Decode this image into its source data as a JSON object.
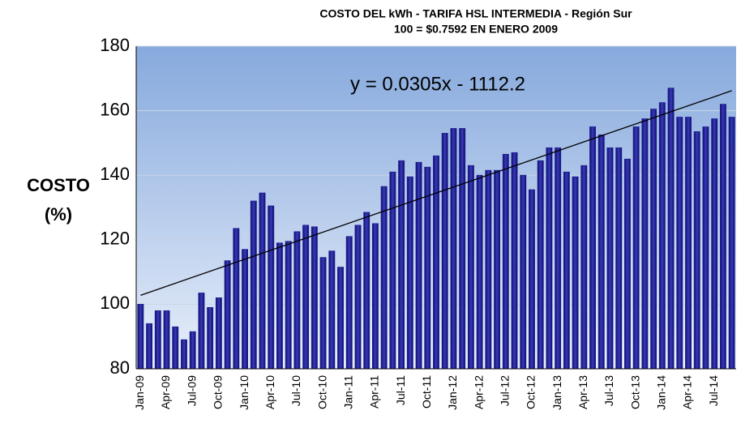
{
  "chart_data": {
    "type": "bar",
    "title": "COSTO DEL kWh - TARIFA HSL INTERMEDIA - Región Sur",
    "subtitle": "100 = $0.7592 EN ENERO 2009",
    "y_label": [
      "COSTO",
      "(%)"
    ],
    "annotation": "y = 0.0305x - 1112.2",
    "categories": [
      "Jan-09",
      null,
      null,
      "Apr-09",
      null,
      null,
      "Jul-09",
      null,
      null,
      "Oct-09",
      null,
      null,
      "Jan-10",
      null,
      null,
      "Apr-10",
      null,
      null,
      "Jul-10",
      null,
      null,
      "Oct-10",
      null,
      null,
      "Jan-11",
      null,
      null,
      "Apr-11",
      null,
      null,
      "Jul-11",
      null,
      null,
      "Oct-11",
      null,
      null,
      "Jan-12",
      null,
      null,
      "Apr-12",
      null,
      null,
      "Jul-12",
      null,
      null,
      "Oct-12",
      null,
      null,
      "Jan-13",
      null,
      null,
      "Apr-13",
      null,
      null,
      "Jul-13",
      null,
      null,
      "Oct-13",
      null,
      null,
      "Jan-14",
      null,
      null,
      "Apr-14",
      null,
      null,
      "Jul-14",
      null,
      null
    ],
    "values": [
      100,
      94,
      98,
      98,
      93,
      89,
      91.5,
      103.5,
      99,
      102,
      113.5,
      123.5,
      117,
      132,
      134.5,
      130.5,
      119,
      119.5,
      122.5,
      124.5,
      124,
      114.5,
      116.5,
      111.5,
      121,
      124.5,
      128.5,
      125,
      136.5,
      141,
      144.5,
      139.5,
      144,
      142.5,
      146,
      153,
      154.5,
      154.5,
      143,
      140,
      141.5,
      141.5,
      146.5,
      147,
      140,
      135.5,
      144.5,
      148.5,
      148.5,
      141,
      139.5,
      143,
      155,
      152.5,
      148.5,
      148.5,
      145,
      155,
      157.5,
      160.5,
      162.5,
      167,
      158,
      158,
      153.5,
      155,
      157.5,
      162,
      158
    ],
    "color": "#1c1c8f",
    "trendline": true,
    "ylim": [
      80,
      180
    ],
    "yticks": [
      80,
      100,
      120,
      140,
      160,
      180
    ],
    "grid": true
  }
}
